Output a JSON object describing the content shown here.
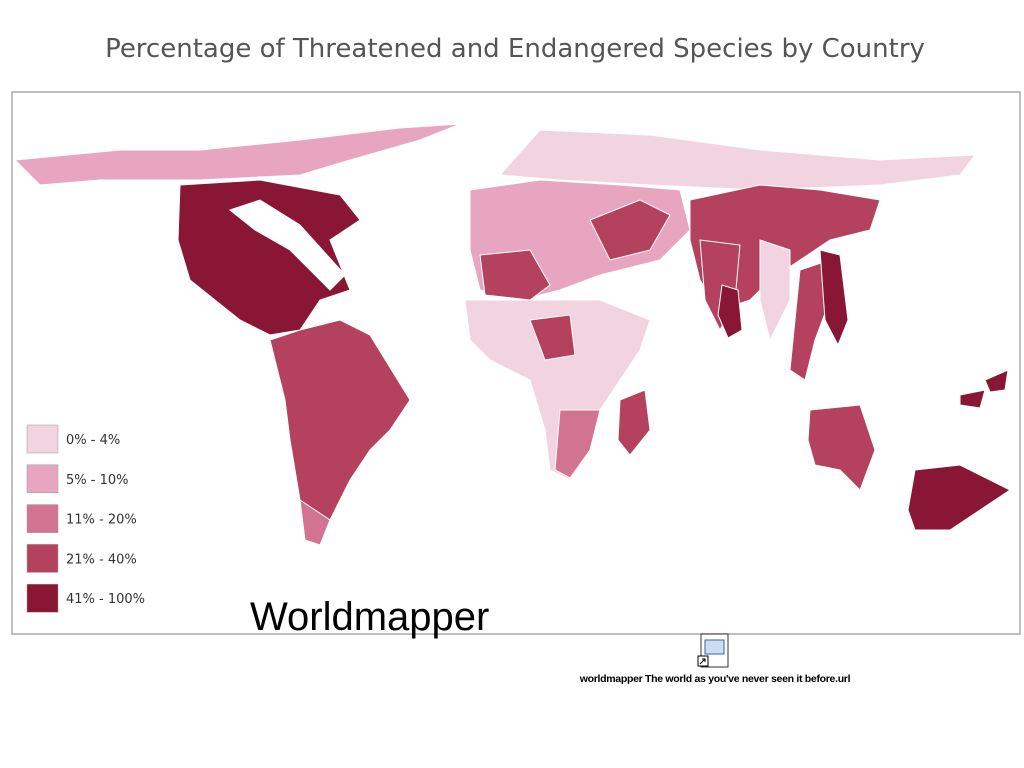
{
  "header": {
    "title": "Percentage of Threatened and Endangered Species by Country"
  },
  "legend": {
    "items": [
      {
        "label": "0% - 4%",
        "color": "#f2d4e0"
      },
      {
        "label": "5% - 10%",
        "color": "#e8a5c0"
      },
      {
        "label": "11% - 20%",
        "color": "#d27391"
      },
      {
        "label": "21% - 40%",
        "color": "#b4425f"
      },
      {
        "label": "41% - 100%",
        "color": "#8a1636"
      }
    ]
  },
  "caption": "Worldmapper",
  "attachment": {
    "label": "worldmapper The world as you've never seen it before.url"
  }
}
